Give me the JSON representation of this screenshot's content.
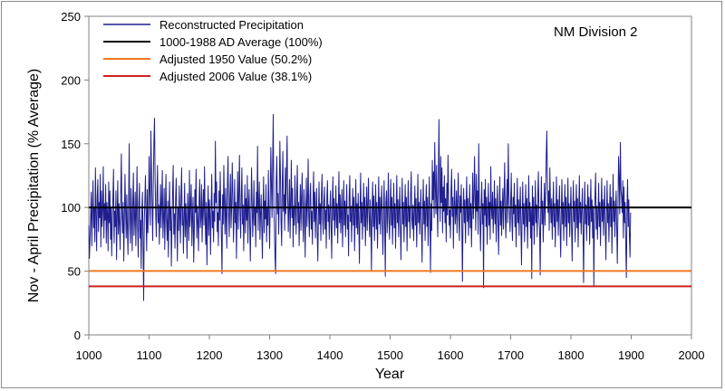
{
  "chart_data": {
    "type": "line",
    "xlabel": "Year",
    "ylabel": "Nov - April Precipitation (% Average)",
    "xlim": [
      1000,
      2000
    ],
    "ylim": [
      0,
      250
    ],
    "xticks": [
      1000,
      1100,
      1200,
      1300,
      1400,
      1500,
      1600,
      1700,
      1800,
      1900,
      2000
    ],
    "yticks": [
      0,
      50,
      100,
      150,
      200,
      250
    ],
    "grid": false,
    "legend_position": "top-left",
    "annotation": "NM Division 2",
    "series": [
      {
        "name": "Reconstructed Precipitation",
        "color": "#1f1f8f",
        "x_start": 1000,
        "x_step": 1,
        "values": [
          86,
          60,
          75,
          92,
          112,
          70,
          98,
          121,
          84,
          100,
          73,
          131,
          95,
          66,
          109,
          122,
          81,
          104,
          92,
          126,
          69,
          113,
          85,
          98,
          132,
          76,
          103,
          90,
          118,
          72,
          104,
          95,
          66,
          120,
          88,
          113,
          75,
          100,
          62,
          91,
          108,
          130,
          72,
          97,
          85,
          113,
          59,
          93,
          121,
          79,
          103,
          88,
          67,
          112,
          142,
          94,
          80,
          104,
          58,
          91,
          126,
          99,
          76,
          110,
          84,
          63,
          101,
          150,
          86,
          72,
          115,
          95,
          66,
          105,
          127,
          78,
          92,
          112,
          70,
          97,
          132,
          84,
          61,
          103,
          119,
          76,
          90,
          52,
          98,
          112,
          72,
          27,
          88,
          106,
          125,
          93,
          66,
          114,
          80,
          96,
          140,
          112,
          86,
          160,
          130,
          101,
          74,
          118,
          151,
          170,
          123,
          95,
          77,
          110,
          133,
          88,
          102,
          71,
          95,
          118,
          84,
          104,
          129,
          76,
          91,
          115,
          67,
          98,
          126,
          88,
          74,
          105,
          61,
          93,
          120,
          82,
          100,
          54,
          86,
          112,
          133,
          79,
          95,
          68,
          107,
          123,
          89,
          58,
          100,
          82,
          117,
          94,
          72,
          108,
          131,
          86,
          99,
          64,
          92,
          119,
          77,
          103,
          88,
          60,
          111,
          95,
          74,
          129,
          85,
          102,
          118,
          70,
          93,
          108,
          57,
          81,
          114,
          96,
          130,
          76,
          101,
          89,
          66,
          105,
          122,
          84,
          92,
          118,
          73,
          98,
          114,
          86,
          132,
          94,
          71,
          104,
          55,
          90,
          117,
          78,
          106,
          93,
          63,
          100,
          126,
          84,
          97,
          73,
          111,
          89,
          152,
          104,
          120,
          81,
          96,
          70,
          113,
          90,
          128,
          100,
          76,
          48,
          110,
          87,
          133,
          102,
          79,
          115,
          92,
          68,
          118,
          140,
          95,
          77,
          106,
          126,
          84,
          99,
          135,
          110,
          73,
          91,
          122,
          88,
          104,
          60,
          97,
          128,
          83,
          112,
          141,
          95,
          76,
          109,
          131,
          87,
          102,
          66,
          96,
          118,
          80,
          107,
          90,
          125,
          72,
          100,
          114,
          87,
          58,
          93,
          131,
          104,
          77,
          95,
          121,
          86,
          100,
          69,
          112,
          96,
          148,
          82,
          103,
          120,
          75,
          94,
          110,
          85,
          60,
          98,
          124,
          80,
          105,
          91,
          118,
          73,
          99,
          86,
          129,
          95,
          68,
          104,
          147,
          118,
          92,
          133,
          173,
          100,
          85,
          60,
          48,
          122,
          140,
          95,
          111,
          79,
          103,
          152,
          126,
          88,
          70,
          118,
          144,
          97,
          110,
          82,
          131,
          95,
          128,
          156,
          108,
          81,
          99,
          122,
          76,
          104,
          137,
          92,
          115,
          69,
          101,
          86,
          125,
          98,
          79,
          112,
          133,
          88,
          104,
          70,
          95,
          118,
          82,
          108,
          127,
          90,
          73,
          114,
          100,
          61,
          96,
          123,
          85,
          104,
          138,
          92,
          77,
          109,
          119,
          83,
          97,
          71,
          105,
          128,
          89,
          112,
          76,
          99,
          115,
          80,
          58,
          93,
          120,
          87,
          103,
          74,
          110,
          126,
          91,
          79,
          104,
          116,
          83,
          98,
          68,
          108,
          121,
          89,
          102,
          75,
          97,
          113,
          86,
          60,
          101,
          124,
          90,
          107,
          78,
          95,
          117,
          84,
          103,
          72,
          99,
          128,
          88,
          110,
          80,
          96,
          114,
          69,
          92,
          121,
          86,
          105,
          77,
          100,
          118,
          83,
          94,
          62,
          108,
          125,
          89,
          101,
          73,
          97,
          115,
          86,
          108,
          66,
          94,
          122,
          84,
          103,
          79,
          111,
          90,
          56,
          99,
          127,
          88,
          104,
          75,
          97,
          119,
          85,
          108,
          70,
          95,
          116,
          82,
          102,
          123,
          91,
          77,
          106,
          88,
          50,
          98,
          120,
          85,
          109,
          74,
          96,
          118,
          83,
          104,
          68,
          94,
          124,
          87,
          108,
          79,
          101,
          117,
          90,
          63,
          97,
          121,
          86,
          46,
          104,
          113,
          80,
          96,
          127,
          89,
          75,
          100,
          122,
          86,
          108,
          71,
          95,
          119,
          84,
          103,
          68,
          98,
          125,
          88,
          106,
          77,
          99,
          116,
          83,
          59,
          96,
          123,
          87,
          104,
          73,
          97,
          118,
          85,
          108,
          66,
          94,
          121,
          89,
          101,
          76,
          110,
          128,
          91,
          83,
          102,
          74,
          96,
          117,
          86,
          107,
          69,
          93,
          126,
          88,
          104,
          79,
          100,
          114,
          84,
          57,
          97,
          122,
          87,
          105,
          74,
          99,
          118,
          85,
          108,
          70,
          95,
          124,
          88,
          49,
          103,
          82,
          137,
          106,
          128,
          92,
          151,
          118,
          95,
          133,
          101,
          77,
          124,
          169,
          112,
          89,
          140,
          104,
          131,
          80,
          116,
          97,
          125,
          88,
          107,
          73,
          119,
          94,
          141,
          109,
          86,
          98,
          76,
          112,
          130,
          93,
          108,
          68,
          101,
          122,
          87,
          95,
          113,
          80,
          104,
          127,
          90,
          74,
          109,
          96,
          118,
          83,
          42,
          97,
          115,
          88,
          106,
          72,
          100,
          124,
          89,
          107,
          78,
          95,
          118,
          84,
          103,
          69,
          98,
          127,
          91,
          105,
          140,
          110,
          82,
          126,
          97,
          113,
          79,
          150,
          104,
          88,
          66,
          101,
          120,
          87,
          103,
          37,
          114,
          94,
          122,
          85,
          108,
          71,
          97,
          119,
          86,
          104,
          75,
          132,
          100,
          91,
          112,
          80,
          96,
          121,
          87,
          107,
          73,
          101,
          117,
          89,
          63,
          98,
          124,
          86,
          105,
          78,
          99,
          115,
          83,
          108,
          135,
          94,
          76,
          103,
          122,
          88,
          150,
          112,
          96,
          81,
          104,
          127,
          91,
          74,
          108,
          95,
          119,
          85,
          102,
          69,
          97,
          123,
          88,
          106,
          78,
          100,
          116,
          84,
          55,
          94,
          120,
          87,
          103,
          73,
          98,
          118,
          85,
          107,
          68,
          96,
          125,
          89,
          104,
          76,
          99,
          44,
          117,
          86,
          108,
          71,
          95,
          121,
          88,
          102,
          77,
          110,
          128,
          92,
          83,
          47,
          100,
          124,
          87,
          105,
          73,
          97,
          119,
          86,
          109,
          140,
          160,
          122,
          96,
          113,
          82,
          131,
          104,
          88,
          107,
          75,
          99,
          120,
          85,
          103,
          69,
          96,
          124,
          89,
          106,
          78,
          100,
          117,
          84,
          61,
          97,
          122,
          87,
          104,
          74,
          98,
          118,
          85,
          108,
          70,
          95,
          123,
          88,
          103,
          77,
          99,
          116,
          86,
          58,
          94,
          121,
          89,
          105,
          73,
          100,
          118,
          84,
          107,
          69,
          96,
          125,
          88,
          104,
          79,
          99,
          115,
          83,
          41,
          95,
          120,
          87,
          102,
          74,
          98,
          118,
          86,
          108,
          71,
          95,
          122,
          89,
          106,
          76,
          101,
          38,
          88,
          110,
          127,
          83,
          101,
          75,
          96,
          119,
          85,
          104,
          70,
          97,
          123,
          89,
          106,
          78,
          100,
          117,
          84,
          59,
          95,
          121,
          88,
          103,
          73,
          97,
          118,
          85,
          108,
          64,
          94,
          126,
          89,
          105,
          77,
          99,
          113,
          83,
          56,
          96,
          140,
          124,
          95,
          151,
          114,
          108,
          96,
          121,
          76,
          116,
          88,
          104,
          69,
          45,
          99,
          122,
          85,
          106,
          78,
          61,
          96
        ]
      },
      {
        "name": "1000-1988 AD Average (100%)",
        "color": "#000000",
        "value": 100
      },
      {
        "name": "Adjusted 1950 Value  (50.2%)",
        "color": "#f07820",
        "value": 50.2
      },
      {
        "name": "Adjusted 2006 Value  (38.1%)",
        "color": "#cc2020",
        "value": 38.1
      }
    ]
  }
}
